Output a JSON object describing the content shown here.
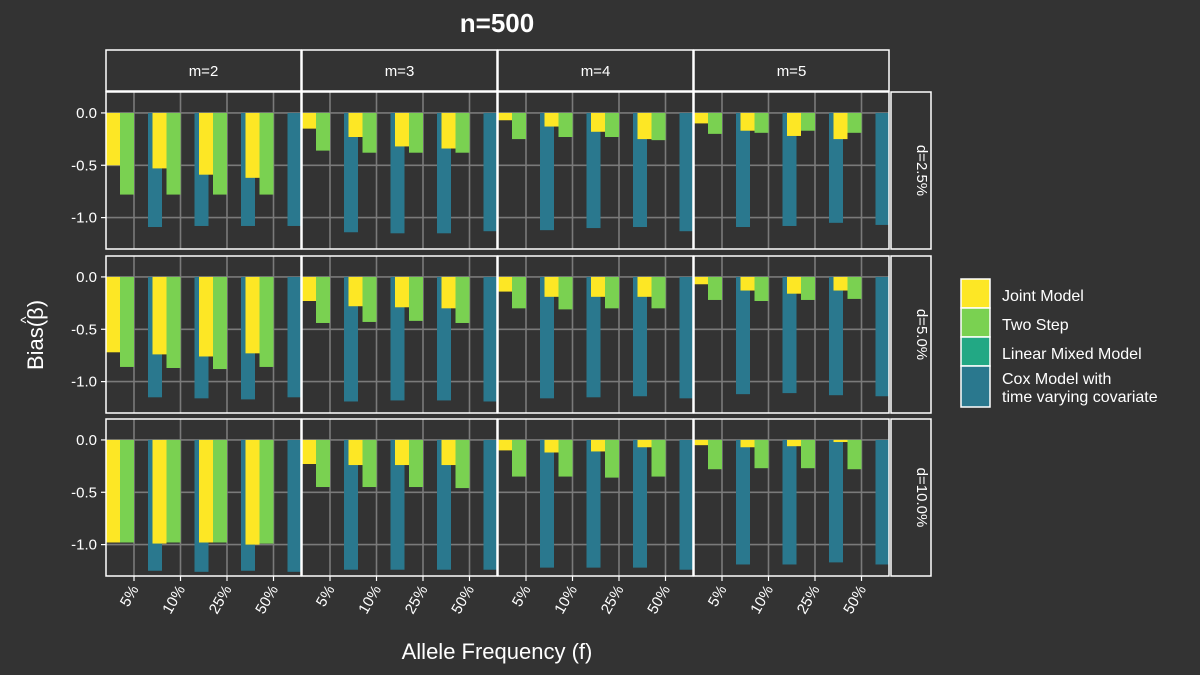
{
  "chart_data": {
    "type": "bar",
    "title": "n=500",
    "xlabel": "Allele Frequency (f)",
    "ylabel": "Bias(β)",
    "ylabel_hat": "^",
    "ylim": [
      -1.3,
      0.2
    ],
    "yticks": [
      {
        "value": 0.0,
        "label": "0.0"
      },
      {
        "value": -0.5,
        "label": "-0.5"
      },
      {
        "value": -1.0,
        "label": "-1.0"
      }
    ],
    "grid": true,
    "legend_position": "right",
    "categories": [
      "5%",
      "10%",
      "25%",
      "50%"
    ],
    "facet_cols": [
      "m=2",
      "m=3",
      "m=4",
      "m=5"
    ],
    "facet_rows": [
      "d=2.5%",
      "d=5.0%",
      "d=10.0%"
    ],
    "series": [
      {
        "name": "Joint Model",
        "color": "#FDE725"
      },
      {
        "name": "Two Step",
        "color": "#7AD151"
      },
      {
        "name": "Linear Mixed Model",
        "color": "#22A884"
      },
      {
        "name": "Cox Model with",
        "name_line2": "time varying covariate",
        "color": "#2A788E"
      }
    ],
    "panels": [
      {
        "row": "d=2.5%",
        "col": "m=2",
        "values": [
          [
            -0.5,
            -0.53,
            -0.59,
            -0.62
          ],
          [
            -0.78,
            -0.78,
            -0.78,
            -0.78
          ],
          [
            0,
            0,
            0,
            0
          ],
          [
            -1.09,
            -1.08,
            -1.08,
            -1.08
          ]
        ]
      },
      {
        "row": "d=2.5%",
        "col": "m=3",
        "values": [
          [
            -0.15,
            -0.23,
            -0.32,
            -0.34
          ],
          [
            -0.36,
            -0.38,
            -0.38,
            -0.38
          ],
          [
            0,
            0,
            0,
            0
          ],
          [
            -1.14,
            -1.15,
            -1.15,
            -1.13
          ]
        ]
      },
      {
        "row": "d=2.5%",
        "col": "m=4",
        "values": [
          [
            -0.07,
            -0.13,
            -0.18,
            -0.25
          ],
          [
            -0.25,
            -0.23,
            -0.23,
            -0.26
          ],
          [
            0,
            0,
            0,
            0
          ],
          [
            -1.12,
            -1.1,
            -1.09,
            -1.13
          ]
        ]
      },
      {
        "row": "d=2.5%",
        "col": "m=5",
        "values": [
          [
            -0.1,
            -0.17,
            -0.22,
            -0.25
          ],
          [
            -0.2,
            -0.19,
            -0.17,
            -0.19
          ],
          [
            0,
            0,
            0,
            0
          ],
          [
            -1.09,
            -1.08,
            -1.05,
            -1.07
          ]
        ]
      },
      {
        "row": "d=5.0%",
        "col": "m=2",
        "values": [
          [
            -0.72,
            -0.74,
            -0.76,
            -0.73
          ],
          [
            -0.86,
            -0.87,
            -0.88,
            -0.86
          ],
          [
            0,
            0,
            0,
            0
          ],
          [
            -1.15,
            -1.16,
            -1.17,
            -1.15
          ]
        ]
      },
      {
        "row": "d=5.0%",
        "col": "m=3",
        "values": [
          [
            -0.23,
            -0.28,
            -0.29,
            -0.3
          ],
          [
            -0.44,
            -0.43,
            -0.42,
            -0.44
          ],
          [
            0,
            0,
            0,
            0
          ],
          [
            -1.19,
            -1.18,
            -1.18,
            -1.19
          ]
        ]
      },
      {
        "row": "d=5.0%",
        "col": "m=4",
        "values": [
          [
            -0.14,
            -0.19,
            -0.19,
            -0.19
          ],
          [
            -0.3,
            -0.31,
            -0.3,
            -0.3
          ],
          [
            0,
            0,
            0,
            0
          ],
          [
            -1.16,
            -1.15,
            -1.14,
            -1.16
          ]
        ]
      },
      {
        "row": "d=5.0%",
        "col": "m=5",
        "values": [
          [
            -0.07,
            -0.13,
            -0.16,
            -0.13
          ],
          [
            -0.22,
            -0.23,
            -0.22,
            -0.21
          ],
          [
            0,
            0,
            0,
            0
          ],
          [
            -1.12,
            -1.11,
            -1.13,
            -1.14
          ]
        ]
      },
      {
        "row": "d=10.0%",
        "col": "m=2",
        "values": [
          [
            -0.98,
            -0.99,
            -0.98,
            -1.0
          ],
          [
            -0.98,
            -0.98,
            -0.98,
            -0.99
          ],
          [
            0,
            0,
            0,
            0
          ],
          [
            -1.25,
            -1.26,
            -1.25,
            -1.26
          ]
        ]
      },
      {
        "row": "d=10.0%",
        "col": "m=3",
        "values": [
          [
            -0.23,
            -0.24,
            -0.24,
            -0.24
          ],
          [
            -0.45,
            -0.45,
            -0.45,
            -0.46
          ],
          [
            0,
            0,
            0,
            0
          ],
          [
            -1.24,
            -1.24,
            -1.24,
            -1.24
          ]
        ]
      },
      {
        "row": "d=10.0%",
        "col": "m=4",
        "values": [
          [
            -0.1,
            -0.12,
            -0.11,
            -0.07
          ],
          [
            -0.35,
            -0.35,
            -0.36,
            -0.35
          ],
          [
            0,
            0,
            0,
            0
          ],
          [
            -1.22,
            -1.22,
            -1.22,
            -1.24
          ]
        ]
      },
      {
        "row": "d=10.0%",
        "col": "m=5",
        "values": [
          [
            -0.05,
            -0.07,
            -0.06,
            -0.02
          ],
          [
            -0.28,
            -0.27,
            -0.27,
            -0.28
          ],
          [
            0,
            0,
            0,
            0
          ],
          [
            -1.19,
            -1.19,
            -1.17,
            -1.19
          ]
        ]
      }
    ]
  }
}
